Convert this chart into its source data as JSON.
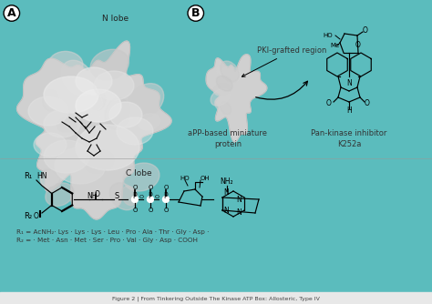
{
  "background_color": "#5bbcbd",
  "fig_width": 4.74,
  "fig_height": 3.34,
  "dpi": 100,
  "label_A": "A",
  "label_B": "B",
  "text_N_lobe": "N lobe",
  "text_C_lobe": "C lobe",
  "text_aPP": "aPP-based miniature\nprotein",
  "text_pan_kinase": "Pan-kinase inhibitor\nK252a",
  "text_PKI": "PKI-grafted region",
  "text_R1": "R₁ = AcNH₂· Lys · Lys · Lys · Leu · Pro · Ala · Thr · Gly · Asp ·",
  "text_R2": "R₂ = · Met · Asn · Met · Ser · Pro · Val · Gly · Asp · COOH",
  "bump_colors": [
    "#c8c8c8",
    "#cacaca",
    "#cccccc",
    "#cecece",
    "#d0d0d0",
    "#d2d2d2",
    "#d4d4d4",
    "#c6c6c6",
    "#cbcbcb",
    "#cdcdcd",
    "#cfcfcf",
    "#d1d1d1",
    "#c9c9c9",
    "#ccccc",
    "#d3d3d3",
    "#c7c7c7",
    "#d0d0d0",
    "#cbcbcb",
    "#cecece",
    "#d2d2d2"
  ],
  "bottom_strip_color": "#e8e8e8"
}
